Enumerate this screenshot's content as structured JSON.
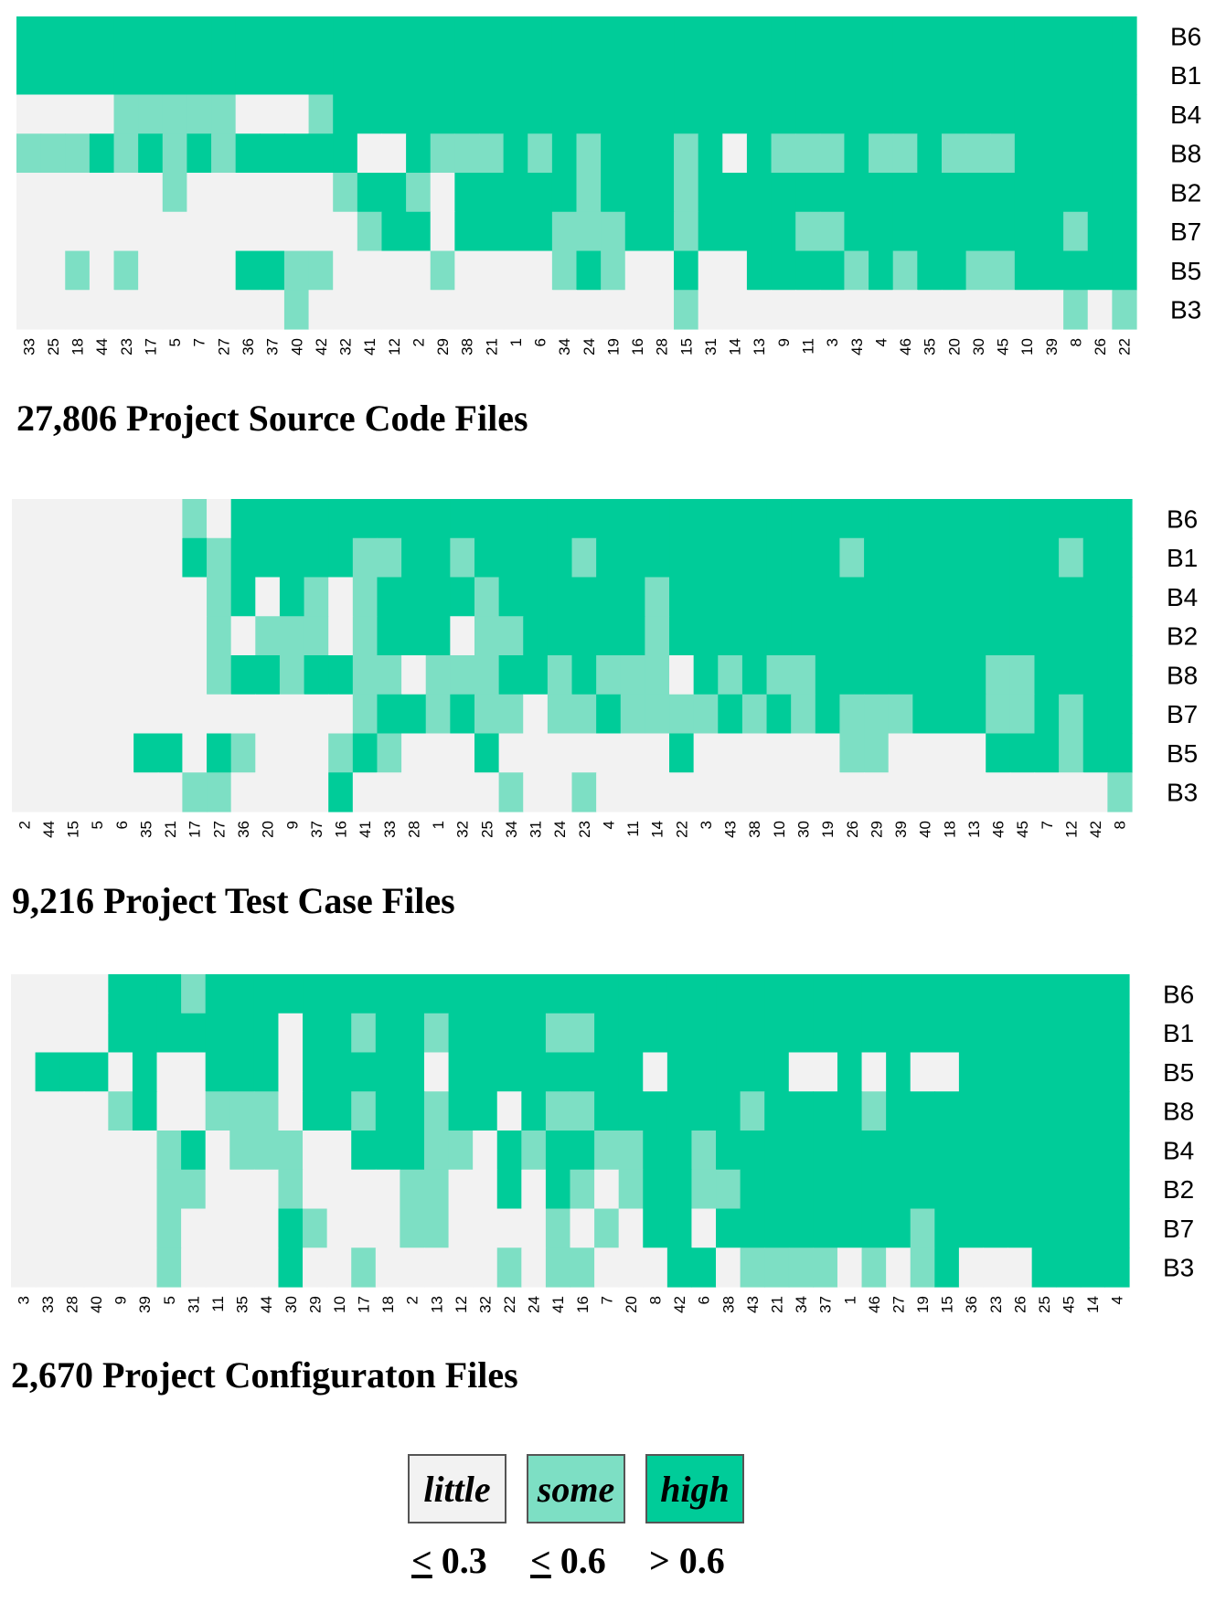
{
  "colors": {
    "little": "#f2f2f2",
    "some": "#7ddfc4",
    "high": "#00cc99"
  },
  "legend": [
    {
      "key": "little",
      "label": "little",
      "sym": "<",
      "value": "0.3",
      "underline": true
    },
    {
      "key": "some",
      "label": "some",
      "sym": "<",
      "value": "0.6",
      "underline": true
    },
    {
      "key": "high",
      "label": "high",
      "sym": ">",
      "value": "0.6",
      "underline": false
    }
  ],
  "chart_data": [
    {
      "type": "heatmap",
      "title": "27,806 Project Source Code Files",
      "rows": [
        "B6",
        "B1",
        "B4",
        "B8",
        "B2",
        "B7",
        "B5",
        "B3"
      ],
      "columns": [
        "33",
        "25",
        "18",
        "44",
        "23",
        "17",
        "5",
        "7",
        "27",
        "36",
        "37",
        "40",
        "42",
        "32",
        "41",
        "12",
        "2",
        "29",
        "38",
        "21",
        "1",
        "6",
        "34",
        "24",
        "19",
        "16",
        "28",
        "15",
        "31",
        "14",
        "13",
        "9",
        "11",
        "3",
        "43",
        "4",
        "46",
        "35",
        "20",
        "30",
        "45",
        "10",
        "39",
        "8",
        "26",
        "22"
      ],
      "levels": [
        "2222222222222222222222222222222222222222222222",
        "2222222222222222222222222222222222222222222222",
        "0000111110001222222222222222222222222222222222",
        "1112121212222200211121212221202111211211122222",
        "0000001000000122102222212221222222222222222222",
        "0000000000000012202222111221222211222222222122",
        "0010100002211000010000121002002222121221122222",
        "0000000000010000000000000001000000000000000101"
      ],
      "legend": [
        "little",
        "some",
        "high"
      ]
    },
    {
      "type": "heatmap",
      "title": "9,216 Project Test Case Files",
      "rows": [
        "B6",
        "B1",
        "B4",
        "B2",
        "B8",
        "B7",
        "B5",
        "B3"
      ],
      "columns": [
        "2",
        "44",
        "15",
        "5",
        "6",
        "35",
        "21",
        "17",
        "27",
        "36",
        "20",
        "9",
        "37",
        "16",
        "41",
        "33",
        "28",
        "1",
        "32",
        "25",
        "34",
        "31",
        "24",
        "23",
        "4",
        "11",
        "14",
        "22",
        "3",
        "43",
        "38",
        "10",
        "30",
        "19",
        "26",
        "29",
        "39",
        "40",
        "18",
        "13",
        "46",
        "45",
        "7",
        "12",
        "42",
        "8"
      ],
      "levels": [
        "0000000102222222222222222222222222222222222222",
        "0000000212222211221222212222222222122222222122",
        "0000000012021012222122222212222222222222222222",
        "0000000010111012220112222212222222222222222222",
        "0000000012212211011122121110212112222222112222",
        "0000000000000012212110112111121212111222112122",
        "0000022021000121000200000002000000110000222122",
        "0000000110000200000010010000000000000000000001"
      ],
      "legend": [
        "little",
        "some",
        "high"
      ]
    },
    {
      "type": "heatmap",
      "title": "2,670 Project Configuraton Files",
      "rows": [
        "B6",
        "B1",
        "B5",
        "B8",
        "B4",
        "B2",
        "B7",
        "B3"
      ],
      "columns": [
        "3",
        "33",
        "28",
        "40",
        "9",
        "39",
        "5",
        "31",
        "11",
        "35",
        "44",
        "30",
        "29",
        "10",
        "17",
        "18",
        "2",
        "13",
        "12",
        "32",
        "22",
        "24",
        "41",
        "16",
        "7",
        "20",
        "8",
        "42",
        "6",
        "38",
        "43",
        "21",
        "34",
        "37",
        "1",
        "46",
        "27",
        "19",
        "15",
        "36",
        "23",
        "26",
        "25",
        "45",
        "14",
        "4"
      ],
      "levels": [
        "0000222122222222222222222222222222222222222222",
        "0000222222202212212222112222222222222222222222",
        "0222020022202222202222222202222200202002222222",
        "0000120011102212212202112222221222212222222222",
        "0000001201110022211021221122122222222222222222",
        "0000001100010000110020210122112222222222222222",
        "0000001000021000110000101022022222222122222222",
        "0000001000020010000010110002201111010120002222"
      ],
      "legend": [
        "little",
        "some",
        "high"
      ]
    }
  ]
}
